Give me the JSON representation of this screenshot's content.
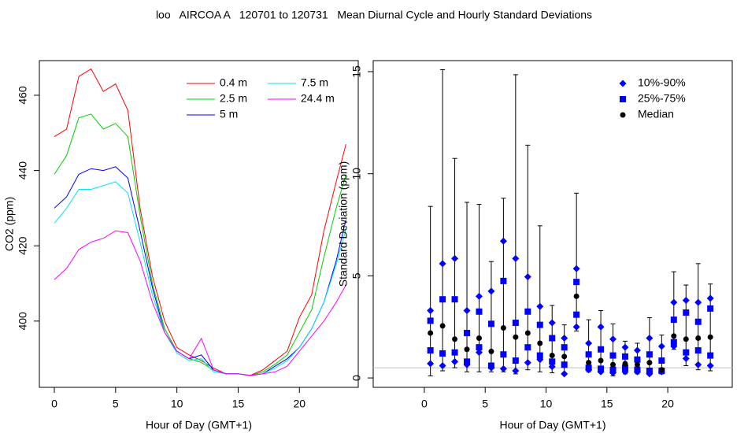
{
  "title": "loo   AIRCOA A   120701 to 120731   Mean Diurnal Cycle and Hourly Standard Deviations",
  "chart_data": [
    {
      "type": "line",
      "xlabel": "Hour of Day (GMT+1)",
      "ylabel": "CO2 (ppm)",
      "x": [
        0,
        1,
        2,
        3,
        4,
        5,
        6,
        7,
        8,
        9,
        10,
        11,
        12,
        13,
        14,
        15,
        16,
        17,
        18,
        19,
        20,
        21,
        22,
        23,
        23.8
      ],
      "xlim": [
        -1.22,
        24.8
      ],
      "ylim": [
        382.4,
        469.2
      ],
      "xticks": [
        0,
        5,
        10,
        15,
        20
      ],
      "yticks": [
        400,
        420,
        440,
        460
      ],
      "series": [
        {
          "name": "0.4 m",
          "color": "#ff0000",
          "values": [
            449,
            451,
            465,
            467,
            461,
            463,
            456,
            430,
            412,
            400,
            393,
            391,
            389.5,
            387.5,
            386,
            386,
            385.6,
            387,
            389.5,
            392,
            401,
            407,
            424,
            437,
            447
          ]
        },
        {
          "name": "2.5 m",
          "color": "#00cd00",
          "values": [
            439,
            444,
            454,
            455,
            451,
            452.5,
            449,
            428,
            410,
            398,
            392,
            390,
            389,
            387,
            386,
            386,
            385.5,
            386.5,
            388.5,
            391,
            397,
            403,
            417,
            430,
            439
          ]
        },
        {
          "name": "5 m",
          "color": "#0000ff",
          "values": [
            430,
            433,
            439,
            440.5,
            440,
            441,
            438,
            424,
            409,
            397,
            392,
            390,
            391,
            387,
            386,
            386,
            385.5,
            386,
            388,
            390,
            393,
            398,
            405,
            416,
            427
          ]
        },
        {
          "name": "7.5 m",
          "color": "#00e5ee",
          "values": [
            426,
            430,
            435,
            435,
            436,
            437,
            434,
            421,
            407,
            397,
            391.5,
            389.5,
            390,
            386.5,
            386,
            386,
            385.5,
            386,
            387.5,
            389.5,
            393,
            398,
            405,
            415,
            424.5
          ]
        },
        {
          "name": "24.4 m",
          "color": "#ff00ff",
          "values": [
            411,
            414,
            419,
            421,
            422,
            424,
            423.5,
            416,
            405,
            397,
            392,
            390,
            395.4,
            387,
            386,
            386,
            385.5,
            386,
            386.5,
            388,
            392,
            396,
            400,
            405,
            409.6
          ]
        }
      ]
    },
    {
      "type": "errorbar",
      "xlabel": "Hour of Day (GMT+1)",
      "ylabel": "Standard Deviation (ppm)",
      "x": [
        0.5,
        1.5,
        2.5,
        3.5,
        4.5,
        5.5,
        6.5,
        7.5,
        8.5,
        9.5,
        10.5,
        11.5,
        12.5,
        13.5,
        14.5,
        15.5,
        16.5,
        17.5,
        18.5,
        19.5,
        20.5,
        21.5,
        22.5,
        23.5
      ],
      "xlim": [
        -4.2,
        25.3
      ],
      "ylim": [
        -0.46,
        15.54
      ],
      "xticks": [
        0,
        5,
        10,
        15,
        20
      ],
      "yticks": [
        0,
        5,
        10,
        15
      ],
      "reference_line": {
        "value": 0.5,
        "color": "#bebebe"
      },
      "whiskers": {
        "color": "#000000",
        "low": [
          0.1,
          0.35,
          0.5,
          0.3,
          0.3,
          0.3,
          0.3,
          0.2,
          0.4,
          0.3,
          0.25,
          0.15,
          2.3,
          0.3,
          0.25,
          0.1,
          0.2,
          0.2,
          0.15,
          0.2,
          1.4,
          0.6,
          0.4,
          0.35
        ],
        "high": [
          8.4,
          15.1,
          10.75,
          8.6,
          8.5,
          5.7,
          8.8,
          14.85,
          11.4,
          7.45,
          3.55,
          2.6,
          9.05,
          2.85,
          3.3,
          2.65,
          1.8,
          1.7,
          2.95,
          2.1,
          5.2,
          4.55,
          5.6,
          4.6
        ]
      },
      "series": [
        {
          "name": "10%-90%",
          "marker": "diamond",
          "color": "#0000ff",
          "low": [
            0.7,
            0.6,
            0.8,
            0.65,
            1.25,
            0.5,
            0.45,
            0.35,
            0.75,
            0.9,
            0.55,
            0.2,
            2.5,
            0.4,
            0.3,
            0.25,
            0.3,
            0.3,
            0.2,
            0.3,
            1.55,
            0.95,
            0.65,
            0.6
          ],
          "high": [
            3.3,
            5.6,
            5.85,
            3.3,
            4.0,
            4.25,
            6.7,
            5.85,
            4.95,
            3.5,
            2.7,
            1.95,
            5.35,
            1.7,
            2.5,
            1.9,
            1.5,
            1.35,
            1.95,
            1.55,
            3.7,
            3.8,
            3.7,
            3.9
          ]
        },
        {
          "name": "25%-75%",
          "marker": "square",
          "color": "#0000ff",
          "low": [
            1.35,
            1.2,
            1.25,
            0.8,
            1.5,
            0.6,
            1.15,
            0.85,
            1.5,
            1.1,
            0.8,
            0.65,
            3.1,
            0.5,
            0.45,
            0.4,
            0.5,
            0.4,
            0.35,
            0.35,
            1.75,
            1.25,
            1.35,
            1.1
          ],
          "high": [
            2.8,
            3.85,
            3.85,
            2.2,
            3.25,
            2.65,
            4.75,
            2.7,
            3.25,
            2.6,
            1.95,
            1.5,
            4.7,
            1.15,
            1.4,
            1.1,
            1.05,
            0.9,
            1.15,
            0.85,
            2.85,
            3.2,
            2.75,
            3.4
          ]
        },
        {
          "name": "Median",
          "marker": "circle",
          "color": "#000000",
          "values": [
            2.2,
            2.55,
            1.9,
            1.4,
            1.95,
            1.3,
            2.45,
            2.0,
            2.2,
            1.7,
            1.1,
            1.05,
            4.0,
            0.75,
            0.85,
            0.65,
            0.7,
            0.65,
            0.75,
            0.4,
            2.05,
            1.9,
            1.95,
            2.0
          ]
        }
      ]
    }
  ]
}
